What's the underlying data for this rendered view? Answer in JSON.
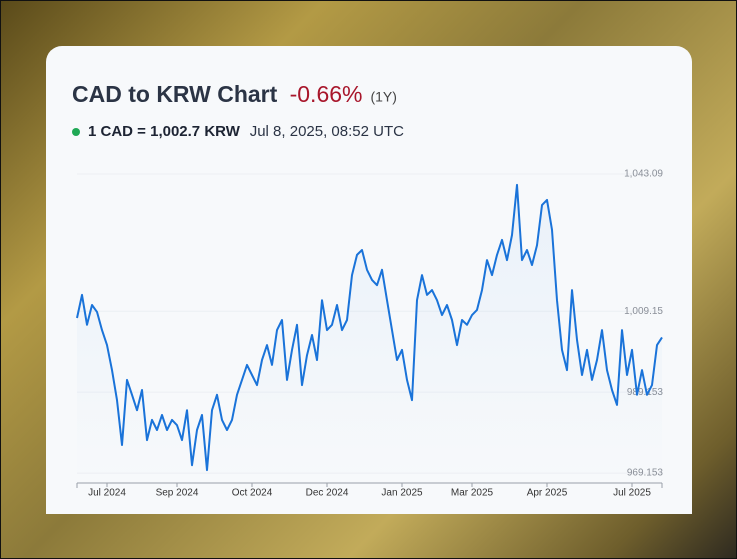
{
  "chart_data": {
    "type": "line",
    "title": "CAD to KRW Chart",
    "change": "-0.66%",
    "period": "(1Y)",
    "rate": "1 CAD = 1,002.7 KRW",
    "timestamp": "Jul 8, 2025, 08:52 UTC",
    "color": "#1a73d9",
    "categories": [
      null,
      null,
      null,
      null,
      null,
      null,
      "Jul 2024",
      null,
      null,
      null,
      null,
      null,
      null,
      null,
      null,
      null,
      null,
      null,
      null,
      null,
      "Sep 2024",
      null,
      null,
      null,
      null,
      null,
      null,
      null,
      null,
      null,
      null,
      null,
      null,
      null,
      null,
      "Oct 2024",
      null,
      null,
      null,
      null,
      null,
      null,
      null,
      null,
      null,
      null,
      null,
      null,
      null,
      null,
      "Dec 2024",
      null,
      null,
      null,
      null,
      null,
      null,
      null,
      null,
      null,
      null,
      null,
      null,
      null,
      null,
      "Jan 2025",
      null,
      null,
      null,
      null,
      null,
      null,
      null,
      null,
      null,
      null,
      null,
      null,
      null,
      "Mar 2025",
      null,
      null,
      null,
      null,
      null,
      null,
      null,
      null,
      null,
      null,
      null,
      null,
      null,
      null,
      "Apr 2025",
      null,
      null,
      null,
      null,
      null,
      null,
      null,
      null,
      null,
      null,
      null,
      null,
      null,
      null,
      null,
      null,
      "Jul 2025",
      null,
      null,
      null,
      null,
      null,
      null
    ],
    "values": [
      1007.5,
      1013.2,
      1005.8,
      1010.7,
      1009.0,
      1004.5,
      1000.8,
      994.6,
      987.2,
      976.1,
      992.2,
      988.5,
      984.7,
      989.7,
      977.3,
      982.3,
      979.8,
      983.5,
      979.8,
      982.3,
      981.0,
      977.3,
      984.7,
      971.1,
      979.8,
      983.5,
      969.9,
      984.7,
      988.5,
      982.3,
      979.8,
      982.3,
      988.5,
      992.2,
      995.9,
      993.4,
      990.9,
      997.1,
      1000.8,
      995.9,
      1004.5,
      1007.0,
      992.2,
      999.6,
      1005.8,
      990.9,
      998.3,
      1003.3,
      997.1,
      1011.9,
      1004.5,
      1005.8,
      1010.7,
      1004.5,
      1007.0,
      1018.1,
      1023.1,
      1024.3,
      1019.4,
      1016.9,
      1015.6,
      1019.4,
      1011.9,
      1004.5,
      997.1,
      999.6,
      992.2,
      987.2,
      1011.9,
      1018.1,
      1013.2,
      1014.4,
      1011.9,
      1008.2,
      1010.7,
      1007.0,
      1000.8,
      1007.0,
      1005.8,
      1008.2,
      1009.5,
      1014.4,
      1021.8,
      1018.1,
      1023.1,
      1026.8,
      1021.8,
      1028.0,
      1040.4,
      1021.8,
      1024.3,
      1020.6,
      1025.5,
      1035.4,
      1036.7,
      1029.3,
      1011.9,
      999.6,
      994.6,
      1014.4,
      1002.1,
      993.4,
      999.6,
      992.2,
      997.1,
      1004.5,
      994.6,
      989.7,
      986.0,
      1004.5,
      993.4,
      999.6,
      988.5,
      994.6,
      988.5,
      990.9,
      1000.8,
      1002.7
    ],
    "ylim": [
      966.7,
      1045.07
    ],
    "yticks": [
      {
        "value": 1043.09,
        "label": "1,043.09"
      },
      {
        "value": 1009.15,
        "label": "1,009.15"
      },
      989.153,
      969.153
    ],
    "grid": true
  }
}
